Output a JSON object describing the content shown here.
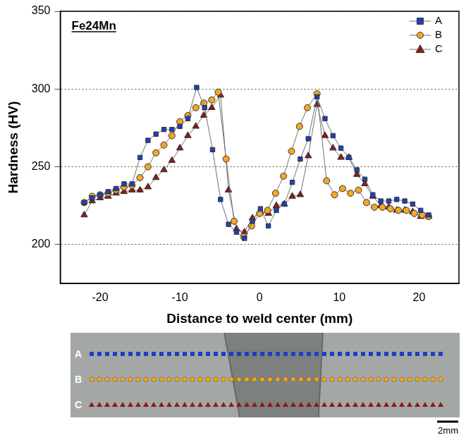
{
  "chart_data": {
    "type": "line",
    "title": "Fe24Mn",
    "x_label": "Distance to weld center (mm)",
    "y_label": "Hardness (HV)",
    "xlim": [
      -25,
      25
    ],
    "xticks": [
      -20,
      -10,
      0,
      10,
      20
    ],
    "ylim": [
      175,
      350
    ],
    "yticks": [
      200,
      250,
      300,
      350
    ],
    "grid": true,
    "legend": "upper right",
    "series": [
      {
        "name": "A",
        "color": "#1f3fbf",
        "marker": "square",
        "x": [
          -22,
          -21,
          -20,
          -19,
          -18,
          -17,
          -16,
          -15,
          -14,
          -13,
          -12,
          -11,
          -10,
          -9,
          -7.9,
          -6.9,
          -5.9,
          -4.9,
          -3.9,
          -2.9,
          -1.9,
          -0.9,
          0.1,
          1.1,
          2.1,
          3.1,
          4.1,
          5.1,
          6.1,
          7.2,
          8.2,
          9.2,
          10.2,
          11.2,
          12.2,
          13.2,
          14.2,
          15.2,
          16.2,
          17.2,
          18.2,
          19.2,
          20.2,
          21.2
        ],
        "values": [
          227,
          230,
          232,
          234,
          236,
          239,
          239,
          256,
          267,
          271,
          274,
          274,
          276,
          281,
          301,
          288,
          261,
          229,
          213,
          208,
          204,
          215,
          223,
          212,
          222,
          226,
          240,
          255,
          268,
          295,
          281,
          270,
          262,
          256,
          248,
          242,
          232,
          228,
          228,
          229,
          228,
          226,
          222,
          219
        ]
      },
      {
        "name": "B",
        "color": "#f5a623",
        "marker": "circle",
        "x": [
          -22,
          -21,
          -20,
          -19,
          -18,
          -17,
          -16,
          -15,
          -14,
          -13,
          -12,
          -11,
          -10,
          -9,
          -8,
          -7,
          -6,
          -5.2,
          -4.2,
          -3.2,
          -2,
          -1,
          0,
          1,
          2,
          3,
          4,
          5,
          6,
          7.2,
          8.4,
          9.4,
          10.4,
          11.4,
          12.4,
          13.4,
          14.4,
          15.4,
          16.4,
          17.4,
          18.4,
          19.4,
          20.4,
          21.2
        ],
        "values": [
          227,
          231,
          232,
          233,
          235,
          237,
          238,
          243,
          250,
          259,
          264,
          270,
          279,
          283,
          288,
          291,
          293,
          298,
          255,
          215,
          205,
          212,
          220,
          222,
          233,
          244,
          260,
          276,
          288,
          297,
          241,
          232,
          236,
          233,
          235,
          227,
          224,
          224,
          223,
          222,
          222,
          220,
          219,
          218
        ]
      },
      {
        "name": "C",
        "color": "#8b1a1a",
        "marker": "triangle",
        "x": [
          -22,
          -21,
          -20,
          -19,
          -18,
          -17,
          -16,
          -15,
          -14,
          -13,
          -12,
          -11,
          -10,
          -9,
          -8,
          -7,
          -6,
          -4.9,
          -3.9,
          -2.9,
          -1.9,
          -0.9,
          0.1,
          1.1,
          2.1,
          3.1,
          4.1,
          5.1,
          6.1,
          7.2,
          8.2,
          9.2,
          10.2,
          11.2,
          12.2,
          13.2,
          14.2,
          15.2,
          16.2,
          17.2,
          18.2,
          19.2,
          20.2,
          21.2
        ],
        "values": [
          219,
          228,
          230,
          231,
          233,
          234,
          235,
          235,
          237,
          243,
          248,
          254,
          262,
          270,
          276,
          283,
          288,
          296,
          235,
          210,
          208,
          217,
          221,
          220,
          225,
          226,
          231,
          232,
          257,
          290,
          270,
          262,
          256,
          256,
          245,
          239,
          231,
          225,
          224,
          222,
          222,
          221,
          218,
          218
        ]
      }
    ]
  },
  "macrograph": {
    "scale_bar": "2mm"
  }
}
